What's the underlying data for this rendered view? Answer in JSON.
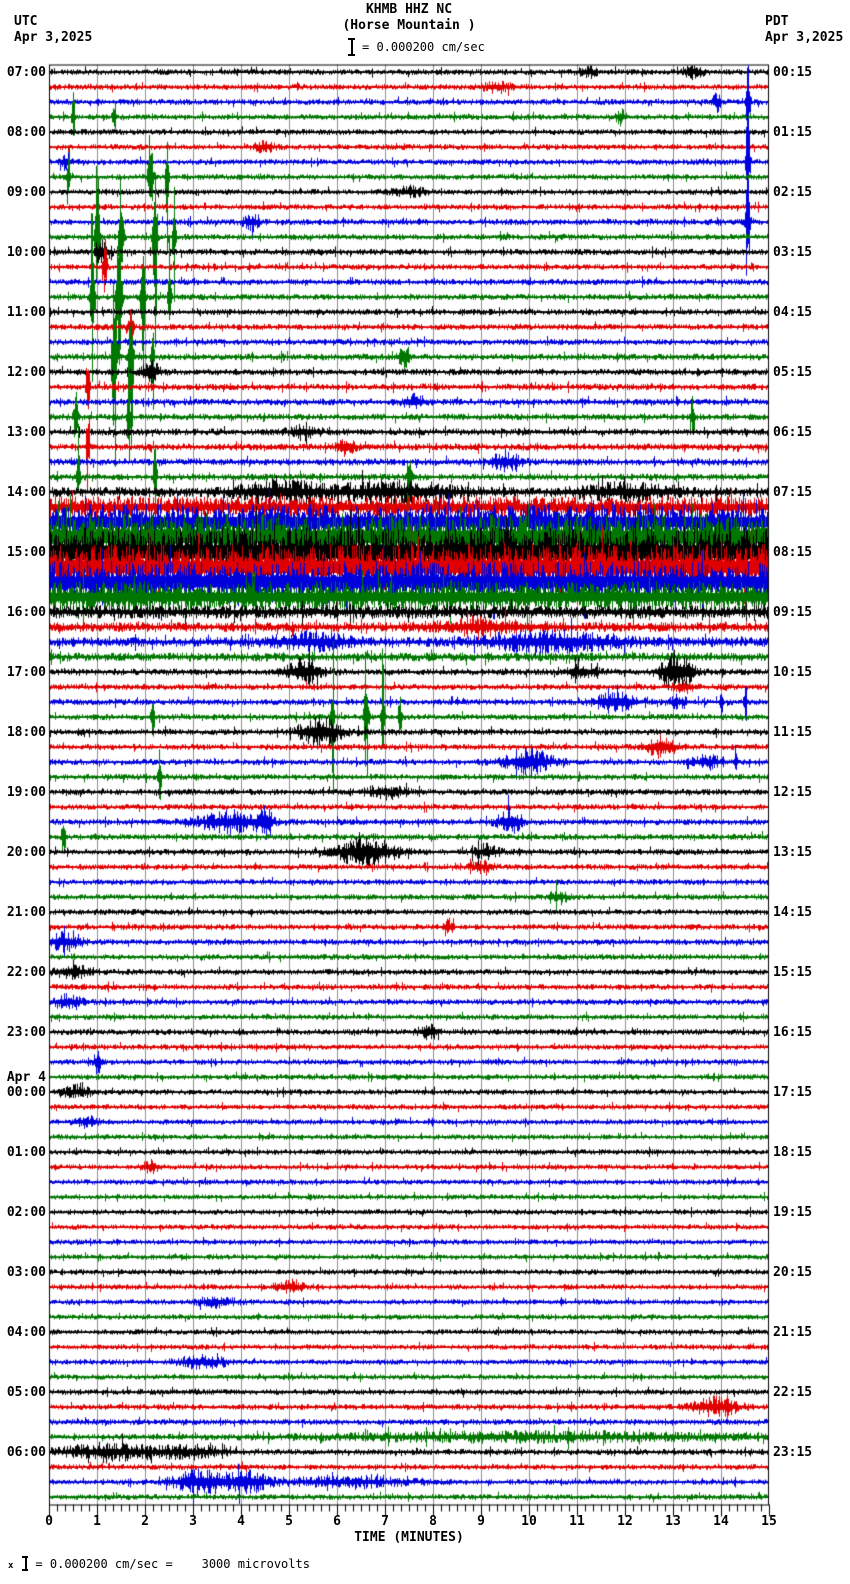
{
  "header": {
    "station_line1": "KHMB HHZ NC",
    "station_line2": "(Horse Mountain )",
    "scale_label": "= 0.000200 cm/sec",
    "left_timezone": "UTC",
    "left_date": "Apr 3,2025",
    "right_timezone": "PDT",
    "right_date": "Apr 3,2025"
  },
  "footer": {
    "note_prefix": "x",
    "note": "= 0.000200 cm/sec =    3000 microvolts"
  },
  "chart_data": {
    "type": "line",
    "subtype": "helicorder-seismogram",
    "title": "KHMB HHZ NC",
    "subtitle": "(Horse Mountain )",
    "xlabel": "TIME (MINUTES)",
    "x_ticks": [
      "0",
      "1",
      "2",
      "3",
      "4",
      "5",
      "6",
      "7",
      "8",
      "9",
      "10",
      "11",
      "12",
      "13",
      "14",
      "15"
    ],
    "x_range_minutes": [
      0,
      15
    ],
    "minutes_per_row": 15,
    "rows_total": 96,
    "minor_ticks_per_minute": 6,
    "utc_start_label": "07:00 Apr 3,2025 UTC",
    "pdt_start_label": "00:15 Apr 3,2025 PDT",
    "trace_color_cycle": [
      "#000000",
      "#e00000",
      "#0000dd",
      "#007700"
    ],
    "grid_color": "#909090",
    "frame_color": "#000000",
    "amp_units": "approx peak noise amplitude, px",
    "event_format": "[minute_center, amplitude_px, sigma_minutes]",
    "rows": [
      {
        "u": "07:00",
        "p": "00:15",
        "a": 3,
        "e": [
          [
            11.2,
            5,
            0.2
          ],
          [
            13.4,
            6,
            0.2
          ]
        ]
      },
      {
        "a": 3,
        "e": [
          [
            9.3,
            5,
            0.3
          ]
        ]
      },
      {
        "a": 3,
        "e": [
          [
            13.9,
            10,
            0.08
          ],
          [
            14.55,
            60,
            0.04
          ]
        ]
      },
      {
        "a": 3,
        "e": [
          [
            0.5,
            35,
            0.03
          ],
          [
            1.35,
            25,
            0.03
          ],
          [
            11.9,
            8,
            0.1
          ]
        ]
      },
      {
        "u": "08:00",
        "p": "01:15",
        "a": 3
      },
      {
        "a": 3,
        "e": [
          [
            4.5,
            5,
            0.2
          ]
        ]
      },
      {
        "a": 3,
        "e": [
          [
            0.35,
            10,
            0.1
          ],
          [
            14.55,
            70,
            0.04
          ]
        ]
      },
      {
        "a": 3,
        "e": [
          [
            0.4,
            50,
            0.03
          ],
          [
            2.1,
            80,
            0.04
          ],
          [
            2.45,
            60,
            0.03
          ]
        ]
      },
      {
        "u": "09:00",
        "p": "02:15",
        "a": 3,
        "e": [
          [
            7.5,
            5,
            0.3
          ]
        ]
      },
      {
        "a": 3
      },
      {
        "a": 3.2,
        "e": [
          [
            4.2,
            8,
            0.15
          ],
          [
            14.55,
            80,
            0.04
          ]
        ]
      },
      {
        "a": 3.2,
        "e": [
          [
            1.0,
            110,
            0.04
          ],
          [
            1.5,
            95,
            0.04
          ],
          [
            2.2,
            130,
            0.04
          ],
          [
            2.6,
            70,
            0.03
          ]
        ]
      },
      {
        "u": "10:00",
        "p": "03:15",
        "a": 3.2,
        "e": [
          [
            1.1,
            12,
            0.15
          ]
        ]
      },
      {
        "a": 3,
        "e": [
          [
            1.15,
            30,
            0.05
          ]
        ]
      },
      {
        "a": 3.2
      },
      {
        "a": 3.2,
        "e": [
          [
            0.9,
            120,
            0.04
          ],
          [
            1.45,
            140,
            0.05
          ],
          [
            1.95,
            100,
            0.04
          ],
          [
            2.5,
            80,
            0.03
          ]
        ]
      },
      {
        "u": "11:00",
        "p": "04:15",
        "a": 3.2
      },
      {
        "a": 3.2,
        "e": [
          [
            1.7,
            25,
            0.05
          ]
        ]
      },
      {
        "a": 3.2
      },
      {
        "a": 3.4,
        "e": [
          [
            1.35,
            110,
            0.04
          ],
          [
            1.7,
            130,
            0.04
          ],
          [
            2.15,
            70,
            0.03
          ],
          [
            7.4,
            15,
            0.1
          ]
        ]
      },
      {
        "u": "12:00",
        "p": "05:15",
        "a": 3.4,
        "e": [
          [
            2.1,
            10,
            0.2
          ]
        ]
      },
      {
        "a": 3.4,
        "e": [
          [
            0.8,
            55,
            0.03
          ]
        ]
      },
      {
        "a": 3.4,
        "e": [
          [
            7.6,
            8,
            0.2
          ]
        ]
      },
      {
        "a": 3.4,
        "e": [
          [
            0.55,
            60,
            0.03
          ],
          [
            1.65,
            85,
            0.03
          ],
          [
            13.4,
            20,
            0.05
          ]
        ]
      },
      {
        "u": "13:00",
        "p": "06:15",
        "a": 3.6,
        "e": [
          [
            5.3,
            6,
            0.3
          ]
        ]
      },
      {
        "a": 3.6,
        "e": [
          [
            0.8,
            45,
            0.03
          ],
          [
            6.2,
            8,
            0.2
          ]
        ]
      },
      {
        "a": 3.6,
        "e": [
          [
            9.5,
            8,
            0.3
          ]
        ]
      },
      {
        "a": 3.6,
        "e": [
          [
            0.6,
            55,
            0.03
          ],
          [
            2.2,
            65,
            0.03
          ],
          [
            7.5,
            40,
            0.04
          ]
        ]
      },
      {
        "u": "14:00",
        "p": "07:15",
        "a": 5,
        "e": [
          [
            4.8,
            10,
            0.8
          ],
          [
            7.2,
            9,
            1.2
          ],
          [
            12,
            7,
            1
          ]
        ]
      },
      {
        "a": 11
      },
      {
        "a": 18
      },
      {
        "a": 24
      },
      {
        "u": "15:00",
        "p": "08:15",
        "a": 25
      },
      {
        "a": 23
      },
      {
        "a": 21
      },
      {
        "a": 16
      },
      {
        "u": "16:00",
        "p": "09:15",
        "a": 7
      },
      {
        "a": 5,
        "e": [
          [
            9,
            6,
            1
          ]
        ]
      },
      {
        "a": 5,
        "e": [
          [
            5.5,
            7,
            0.8
          ],
          [
            10.5,
            9,
            1.2
          ]
        ]
      },
      {
        "a": 4.5
      },
      {
        "u": "17:00",
        "p": "10:15",
        "a": 3.4,
        "e": [
          [
            5.3,
            13,
            0.35
          ],
          [
            11.1,
            7,
            0.3
          ],
          [
            13.05,
            20,
            0.3
          ]
        ]
      },
      {
        "a": 3.2,
        "e": [
          [
            13.2,
            6,
            0.2
          ]
        ]
      },
      {
        "a": 3.2,
        "e": [
          [
            11.8,
            11,
            0.4
          ],
          [
            13.1,
            6,
            0.2
          ],
          [
            14.0,
            28,
            0.03
          ],
          [
            14.5,
            30,
            0.03
          ]
        ]
      },
      {
        "a": 3.2,
        "e": [
          [
            2.15,
            40,
            0.03
          ],
          [
            5.9,
            55,
            0.03
          ],
          [
            6.6,
            85,
            0.04
          ],
          [
            6.95,
            75,
            0.03
          ],
          [
            7.3,
            45,
            0.03
          ]
        ]
      },
      {
        "u": "18:00",
        "p": "11:15",
        "a": 3.2,
        "e": [
          [
            5.65,
            15,
            0.4
          ]
        ]
      },
      {
        "a": 3.2,
        "e": [
          [
            12.75,
            10,
            0.3
          ]
        ]
      },
      {
        "a": 3.2,
        "e": [
          [
            10.0,
            13,
            0.45
          ],
          [
            13.7,
            6,
            0.3
          ],
          [
            14.3,
            25,
            0.03
          ]
        ]
      },
      {
        "a": 3.2,
        "e": [
          [
            2.3,
            45,
            0.03
          ]
        ]
      },
      {
        "u": "19:00",
        "p": "12:15",
        "a": 3.2,
        "e": [
          [
            7.0,
            6,
            0.4
          ]
        ]
      },
      {
        "a": 3
      },
      {
        "a": 3.2,
        "e": [
          [
            3.8,
            10,
            0.7
          ],
          [
            4.5,
            17,
            0.12
          ],
          [
            9.6,
            12,
            0.25
          ]
        ]
      },
      {
        "a": 3.2,
        "e": [
          [
            0.3,
            35,
            0.03
          ]
        ]
      },
      {
        "u": "20:00",
        "p": "13:15",
        "a": 3.2,
        "e": [
          [
            6.6,
            14,
            0.6
          ],
          [
            9.1,
            7,
            0.25
          ]
        ]
      },
      {
        "a": 3,
        "e": [
          [
            9.0,
            5,
            0.25
          ]
        ]
      },
      {
        "a": 3
      },
      {
        "a": 3,
        "e": [
          [
            10.6,
            7,
            0.15
          ]
        ]
      },
      {
        "u": "21:00",
        "p": "14:15",
        "a": 3
      },
      {
        "a": 3,
        "e": [
          [
            8.3,
            9,
            0.1
          ]
        ]
      },
      {
        "a": 3,
        "e": [
          [
            0.3,
            8,
            0.35
          ]
        ]
      },
      {
        "a": 3
      },
      {
        "u": "22:00",
        "p": "15:15",
        "a": 3,
        "e": [
          [
            0.5,
            6,
            0.4
          ]
        ]
      },
      {
        "a": 3
      },
      {
        "a": 3,
        "e": [
          [
            0.4,
            7,
            0.3
          ]
        ]
      },
      {
        "a": 2.9
      },
      {
        "u": "23:00",
        "p": "16:15",
        "a": 3,
        "e": [
          [
            7.9,
            7,
            0.2
          ]
        ]
      },
      {
        "a": 2.9
      },
      {
        "a": 2.9,
        "e": [
          [
            1.0,
            12,
            0.08
          ]
        ]
      },
      {
        "a": 2.9
      },
      {
        "u": "00:00",
        "d": "Apr 4",
        "p": "17:15",
        "a": 2.9,
        "e": [
          [
            0.6,
            6,
            0.3
          ]
        ]
      },
      {
        "a": 2.8
      },
      {
        "a": 2.8,
        "e": [
          [
            0.8,
            5,
            0.25
          ]
        ]
      },
      {
        "a": 2.8
      },
      {
        "u": "01:00",
        "p": "18:15",
        "a": 2.8
      },
      {
        "a": 2.8,
        "e": [
          [
            2.1,
            6,
            0.15
          ]
        ]
      },
      {
        "a": 2.8
      },
      {
        "a": 2.8
      },
      {
        "u": "02:00",
        "p": "19:15",
        "a": 2.9
      },
      {
        "a": 2.8
      },
      {
        "a": 2.8
      },
      {
        "a": 2.8
      },
      {
        "u": "03:00",
        "p": "20:15",
        "a": 2.8
      },
      {
        "a": 2.8,
        "e": [
          [
            5.0,
            5,
            0.3
          ]
        ]
      },
      {
        "a": 2.8,
        "e": [
          [
            3.5,
            5,
            0.4
          ]
        ]
      },
      {
        "a": 2.8
      },
      {
        "u": "04:00",
        "p": "21:15",
        "a": 2.8
      },
      {
        "a": 2.8
      },
      {
        "a": 2.8,
        "e": [
          [
            3.2,
            6,
            0.5
          ]
        ]
      },
      {
        "a": 2.8
      },
      {
        "u": "05:00",
        "p": "22:15",
        "a": 3
      },
      {
        "a": 3,
        "e": [
          [
            13.9,
            9,
            0.45
          ]
        ]
      },
      {
        "a": 3
      },
      {
        "a": 3,
        "e": [
          [
            10,
            4,
            4.5
          ]
        ]
      },
      {
        "u": "06:00",
        "p": "23:15",
        "a": 3.2,
        "e": [
          [
            1.3,
            8,
            1.0
          ],
          [
            3.0,
            5,
            0.7
          ]
        ]
      },
      {
        "a": 2.9
      },
      {
        "a": 2.9,
        "e": [
          [
            3.2,
            12,
            0.6
          ],
          [
            4.2,
            9,
            0.4
          ],
          [
            6.2,
            5,
            1.2
          ]
        ]
      },
      {
        "a": 2.9
      }
    ]
  }
}
